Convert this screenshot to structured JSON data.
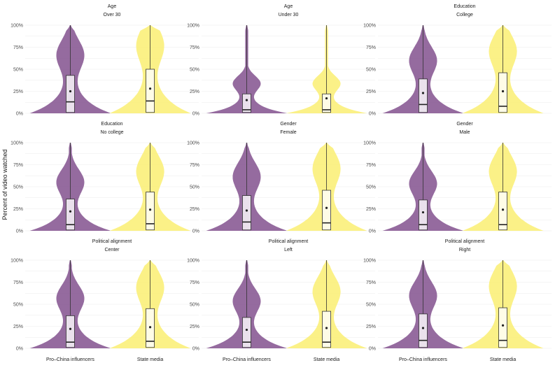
{
  "chart_data": {
    "type": "violin",
    "ylabel": "Percent of video watched",
    "yticks": [
      "0%",
      "25%",
      "50%",
      "75%",
      "100%"
    ],
    "ylim": [
      0,
      100
    ],
    "categories": [
      "Pro–China influencers",
      "State media"
    ],
    "colors": {
      "Pro–China influencers": "#8a5b95",
      "State media": "#fbef7a"
    },
    "grid": true,
    "facets": [
      {
        "group": "Age",
        "level": "Over 30",
        "stats": [
          {
            "q1": 1,
            "median": 13,
            "q3": 43,
            "mean": 25,
            "max": 100
          },
          {
            "q1": 1,
            "median": 14,
            "q3": 50,
            "mean": 28,
            "max": 100
          }
        ]
      },
      {
        "group": "Age",
        "level": "Under 30",
        "stats": [
          {
            "q1": 1,
            "median": 4,
            "q3": 22,
            "mean": 15,
            "max": 100
          },
          {
            "q1": 1,
            "median": 4,
            "q3": 22,
            "mean": 17,
            "max": 100
          }
        ]
      },
      {
        "group": "Education",
        "level": "College",
        "stats": [
          {
            "q1": 1,
            "median": 10,
            "q3": 39,
            "mean": 23,
            "max": 100
          },
          {
            "q1": 1,
            "median": 8,
            "q3": 46,
            "mean": 25,
            "max": 100
          }
        ]
      },
      {
        "group": "Education",
        "level": "No college",
        "stats": [
          {
            "q1": 1,
            "median": 7,
            "q3": 36,
            "mean": 22,
            "max": 100
          },
          {
            "q1": 1,
            "median": 8,
            "q3": 44,
            "mean": 24,
            "max": 100
          }
        ]
      },
      {
        "group": "Gender",
        "level": "Female",
        "stats": [
          {
            "q1": 1,
            "median": 10,
            "q3": 40,
            "mean": 23,
            "max": 100
          },
          {
            "q1": 1,
            "median": 9,
            "q3": 46,
            "mean": 26,
            "max": 100
          }
        ]
      },
      {
        "group": "Gender",
        "level": "Male",
        "stats": [
          {
            "q1": 1,
            "median": 7,
            "q3": 35,
            "mean": 21,
            "max": 100
          },
          {
            "q1": 1,
            "median": 7,
            "q3": 44,
            "mean": 24,
            "max": 100
          }
        ]
      },
      {
        "group": "Political alignment",
        "level": "Center",
        "stats": [
          {
            "q1": 1,
            "median": 7,
            "q3": 37,
            "mean": 22,
            "max": 100
          },
          {
            "q1": 1,
            "median": 8,
            "q3": 45,
            "mean": 24,
            "max": 100
          }
        ]
      },
      {
        "group": "Political alignment",
        "level": "Left",
        "stats": [
          {
            "q1": 1,
            "median": 7,
            "q3": 35,
            "mean": 21,
            "max": 100
          },
          {
            "q1": 1,
            "median": 7,
            "q3": 42,
            "mean": 23,
            "max": 100
          }
        ]
      },
      {
        "group": "Political alignment",
        "level": "Right",
        "stats": [
          {
            "q1": 1,
            "median": 9,
            "q3": 39,
            "mean": 23,
            "max": 100
          },
          {
            "q1": 1,
            "median": 9,
            "q3": 46,
            "mean": 26,
            "max": 100
          }
        ]
      }
    ]
  }
}
